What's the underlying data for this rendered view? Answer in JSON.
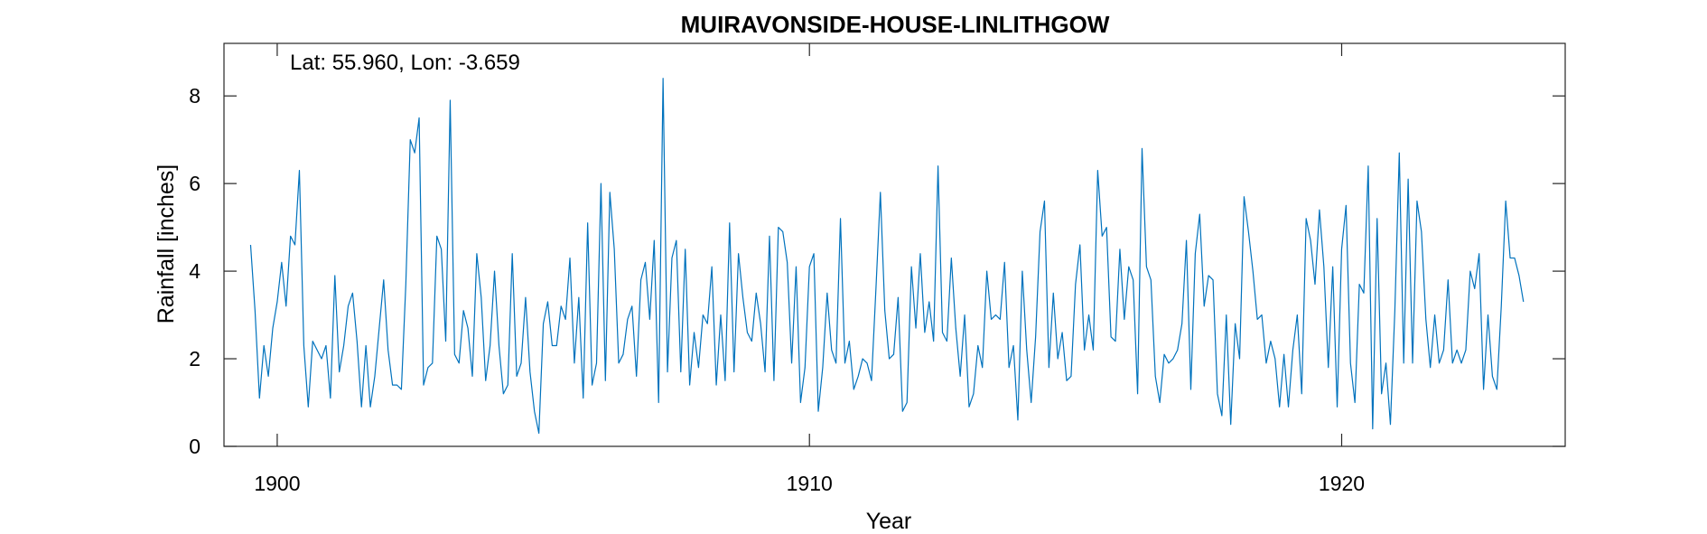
{
  "chart_data": {
    "type": "line",
    "title": "MUIRAVONSIDE-HOUSE-LINLITHGOW",
    "annotation": "Lat: 55.960, Lon: -3.659",
    "xlabel": "Year",
    "ylabel": "Rainfall [inches]",
    "xlim": [
      1899,
      1924.2
    ],
    "ylim": [
      0,
      9.2
    ],
    "xticks": [
      1900,
      1910,
      1920
    ],
    "yticks": [
      0,
      2,
      4,
      6,
      8
    ],
    "grid": false,
    "line_color": "#0072BD",
    "x_start": 1899.5,
    "x_step": 0.08333,
    "series": [
      {
        "values": [
          4.6,
          3.1,
          1.1,
          2.3,
          1.6,
          2.7,
          3.3,
          4.2,
          3.2,
          4.8,
          4.6,
          6.3,
          2.3,
          0.9,
          2.4,
          2.2,
          2.0,
          2.3,
          1.1,
          3.9,
          1.7,
          2.3,
          3.2,
          3.5,
          2.4,
          0.9,
          2.3,
          0.9,
          1.6,
          2.7,
          3.8,
          2.2,
          1.4,
          1.4,
          1.3,
          3.7,
          7.0,
          6.7,
          7.5,
          1.4,
          1.8,
          1.9,
          4.8,
          4.5,
          2.4,
          7.9,
          2.1,
          1.9,
          3.1,
          2.7,
          1.6,
          4.4,
          3.4,
          1.5,
          2.3,
          4.0,
          2.3,
          1.2,
          1.4,
          4.4,
          1.6,
          1.9,
          3.4,
          1.7,
          0.8,
          0.3,
          2.8,
          3.3,
          2.3,
          2.3,
          3.2,
          2.9,
          4.3,
          1.9,
          3.4,
          1.1,
          5.1,
          1.4,
          1.9,
          6.0,
          1.5,
          5.8,
          4.5,
          1.9,
          2.1,
          2.9,
          3.2,
          1.6,
          3.8,
          4.2,
          2.9,
          4.7,
          1.0,
          8.4,
          1.7,
          4.3,
          4.7,
          1.7,
          4.5,
          1.4,
          2.6,
          1.8,
          3.0,
          2.8,
          4.1,
          1.4,
          3.0,
          1.5,
          5.1,
          1.7,
          4.4,
          3.4,
          2.6,
          2.4,
          3.5,
          2.8,
          1.7,
          4.8,
          1.5,
          5.0,
          4.9,
          4.2,
          1.9,
          4.1,
          1.0,
          1.8,
          4.1,
          4.4,
          0.8,
          1.8,
          3.5,
          2.2,
          1.9,
          5.2,
          1.9,
          2.4,
          1.3,
          1.6,
          2.0,
          1.9,
          1.5,
          3.6,
          5.8,
          3.1,
          2.0,
          2.1,
          3.4,
          0.8,
          1.0,
          4.1,
          2.7,
          4.4,
          2.6,
          3.3,
          2.4,
          6.4,
          2.6,
          2.4,
          4.3,
          2.7,
          1.6,
          3.0,
          0.9,
          1.2,
          2.3,
          1.8,
          4.0,
          2.9,
          3.0,
          2.9,
          4.2,
          1.8,
          2.3,
          0.6,
          4.0,
          2.2,
          1.0,
          2.5,
          4.9,
          5.6,
          1.8,
          3.5,
          2.0,
          2.6,
          1.5,
          1.6,
          3.7,
          4.6,
          2.2,
          3.0,
          2.2,
          6.3,
          4.8,
          5.0,
          2.5,
          2.4,
          4.5,
          2.9,
          4.1,
          3.8,
          1.2,
          6.8,
          4.1,
          3.8,
          1.6,
          1.0,
          2.1,
          1.9,
          2.0,
          2.2,
          2.8,
          4.7,
          1.3,
          4.4,
          5.3,
          3.2,
          3.9,
          3.8,
          1.2,
          0.7,
          3.0,
          0.5,
          2.8,
          2.0,
          5.7,
          4.9,
          4.0,
          2.9,
          3.0,
          1.9,
          2.4,
          2.0,
          0.9,
          2.1,
          0.9,
          2.2,
          3.0,
          1.2,
          5.2,
          4.7,
          3.7,
          5.4,
          4.1,
          1.8,
          4.1,
          0.9,
          4.5,
          5.5,
          1.9,
          1.0,
          3.7,
          3.5,
          6.4,
          0.4,
          5.2,
          1.2,
          1.9,
          0.5,
          3.1,
          6.7,
          1.9,
          6.1,
          1.9,
          5.6,
          4.9,
          2.9,
          1.8,
          3.0,
          1.9,
          2.2,
          3.8,
          1.9,
          2.2,
          1.9,
          2.2,
          4.0,
          3.6,
          4.4,
          1.3,
          3.0,
          1.6,
          1.3,
          3.2,
          5.6,
          4.3,
          4.3,
          3.9,
          3.3
        ]
      }
    ]
  }
}
